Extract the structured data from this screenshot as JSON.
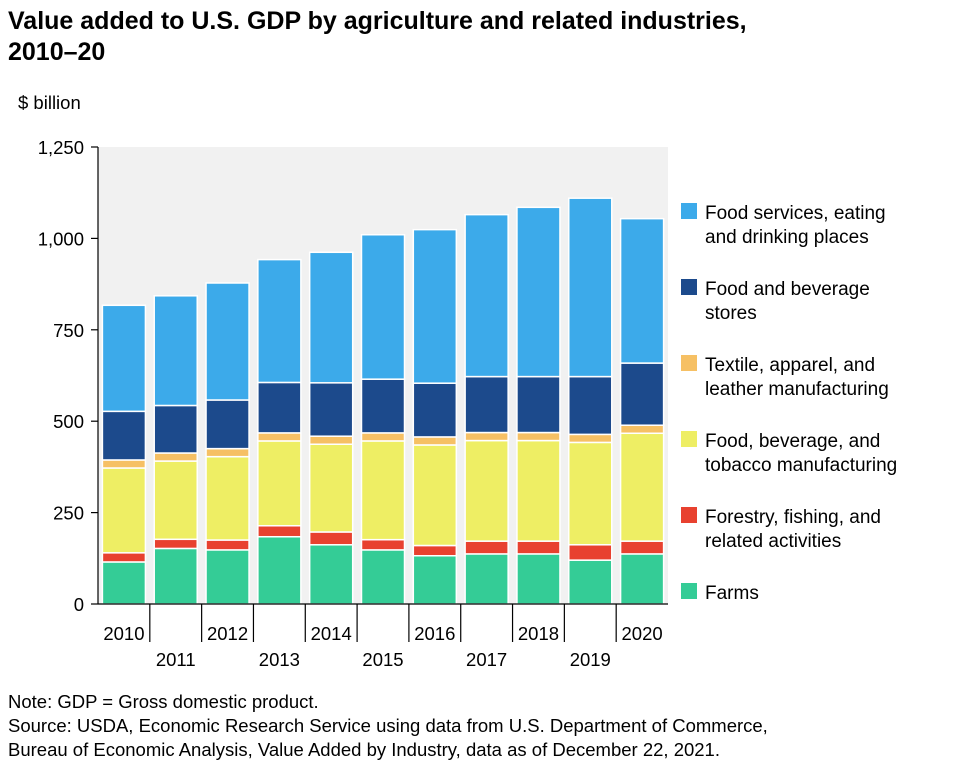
{
  "chart_data": {
    "type": "bar",
    "stacked": true,
    "title_lines": [
      "Value added to U.S. GDP by agriculture and related industries,",
      "2010–20"
    ],
    "ylabel": "$ billion",
    "ylim": [
      0,
      1250
    ],
    "yticks": [
      "0",
      "250",
      "500",
      "750",
      "1,000",
      "1,250"
    ],
    "ytick_values": [
      0,
      250,
      500,
      750,
      1000,
      1250
    ],
    "categories": [
      "2010",
      "2011",
      "2012",
      "2013",
      "2014",
      "2015",
      "2016",
      "2017",
      "2018",
      "2019",
      "2020"
    ],
    "legend_position": "right",
    "grid": false,
    "series": [
      {
        "name_lines": [
          "Farms"
        ],
        "color": "#34cc96",
        "values": [
          115,
          152,
          148,
          184,
          162,
          148,
          132,
          137,
          137,
          120,
          137
        ]
      },
      {
        "name_lines": [
          "Forestry, fishing, and",
          "related activities"
        ],
        "color": "#e8412f",
        "values": [
          25,
          25,
          27,
          30,
          35,
          28,
          28,
          35,
          35,
          42,
          35
        ]
      },
      {
        "name_lines": [
          "Food, beverage, and",
          "tobacco manufacturing"
        ],
        "color": "#eeee64",
        "values": [
          232,
          214,
          228,
          232,
          240,
          270,
          275,
          275,
          275,
          280,
          295
        ]
      },
      {
        "name_lines": [
          "Textile, apparel, and",
          "leather manufacturing"
        ],
        "color": "#f6c064",
        "values": [
          22,
          22,
          22,
          22,
          22,
          22,
          22,
          22,
          22,
          22,
          22
        ]
      },
      {
        "name_lines": [
          "Food and beverage",
          "stores"
        ],
        "color": "#1c4a8c",
        "values": [
          133,
          130,
          133,
          138,
          146,
          147,
          147,
          153,
          153,
          158,
          170
        ]
      },
      {
        "name_lines": [
          "Food services, eating",
          "and drinking places"
        ],
        "color": "#3caaea",
        "values": [
          290,
          300,
          320,
          336,
          357,
          395,
          420,
          443,
          463,
          488,
          395
        ]
      }
    ]
  },
  "notes": {
    "note": "Note: GDP = Gross domestic product.",
    "source_line1": "Source: USDA, Economic Research Service using data from U.S. Department of Commerce,",
    "source_line2": "Bureau of Economic Analysis, Value Added by Industry, data as of December 22, 2021."
  }
}
